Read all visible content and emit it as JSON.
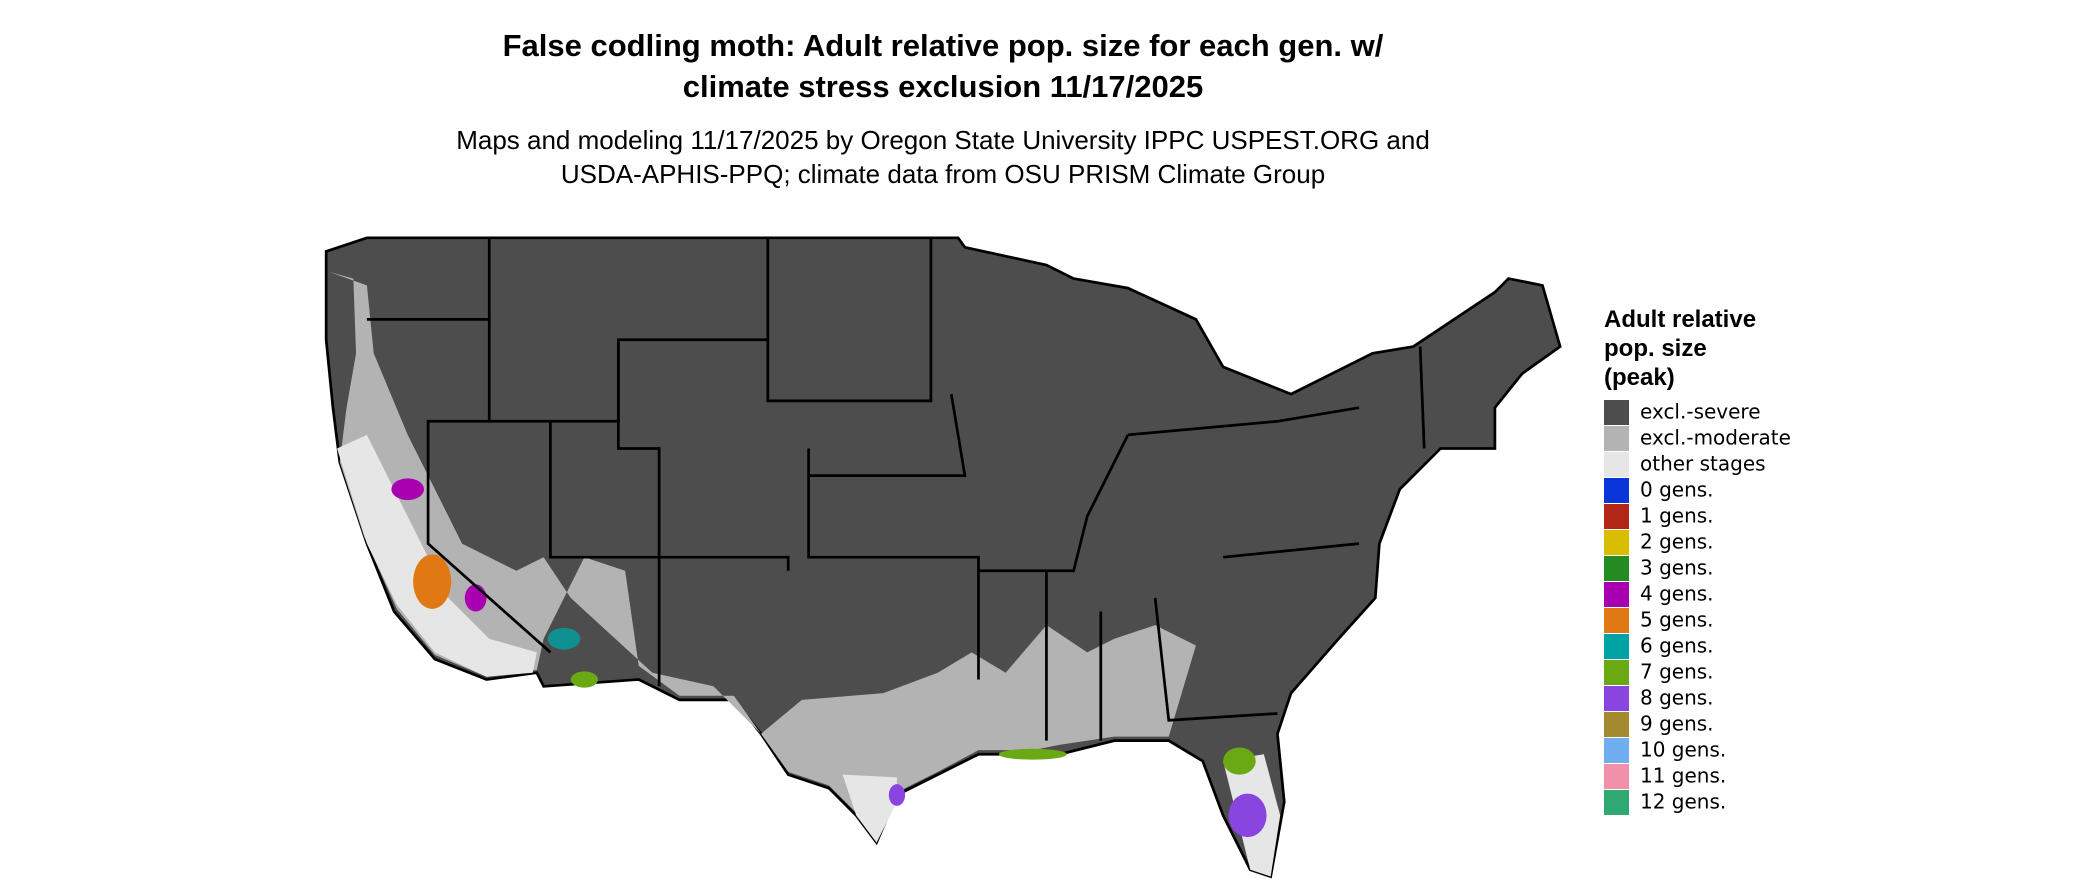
{
  "title": [
    "False codling moth: Adult relative pop. size for each gen. w/",
    "climate stress exclusion 11/17/2025"
  ],
  "subtitle": [
    "Maps and modeling 11/17/2025 by Oregon State University IPPC USPEST.ORG and",
    "USDA-APHIS-PPQ; climate data from OSU PRISM Climate Group"
  ],
  "legend": {
    "title": [
      "Adult relative",
      "pop. size",
      "(peak)"
    ],
    "items": [
      {
        "label": "excl.-severe",
        "color": "#4d4d4d"
      },
      {
        "label": "excl.-moderate",
        "color": "#b3b3b3"
      },
      {
        "label": "other stages",
        "color": "#e6e6e6"
      },
      {
        "label": "0 gens.",
        "color": "#0a36d9"
      },
      {
        "label": "1 gens.",
        "color": "#b22618"
      },
      {
        "label": "2 gens.",
        "color": "#d9bd00"
      },
      {
        "label": "3 gens.",
        "color": "#238b22"
      },
      {
        "label": "4 gens.",
        "color": "#a800b0"
      },
      {
        "label": "5 gens.",
        "color": "#e07814"
      },
      {
        "label": "6 gens.",
        "color": "#00a3a3"
      },
      {
        "label": "7 gens.",
        "color": "#6aa814"
      },
      {
        "label": "8 gens.",
        "color": "#8a44e0"
      },
      {
        "label": "9 gens.",
        "color": "#a38a2e"
      },
      {
        "label": "10 gens.",
        "color": "#70aef0"
      },
      {
        "label": "11 gens.",
        "color": "#f090aa"
      },
      {
        "label": "12 gens.",
        "color": "#30a872"
      }
    ]
  }
}
